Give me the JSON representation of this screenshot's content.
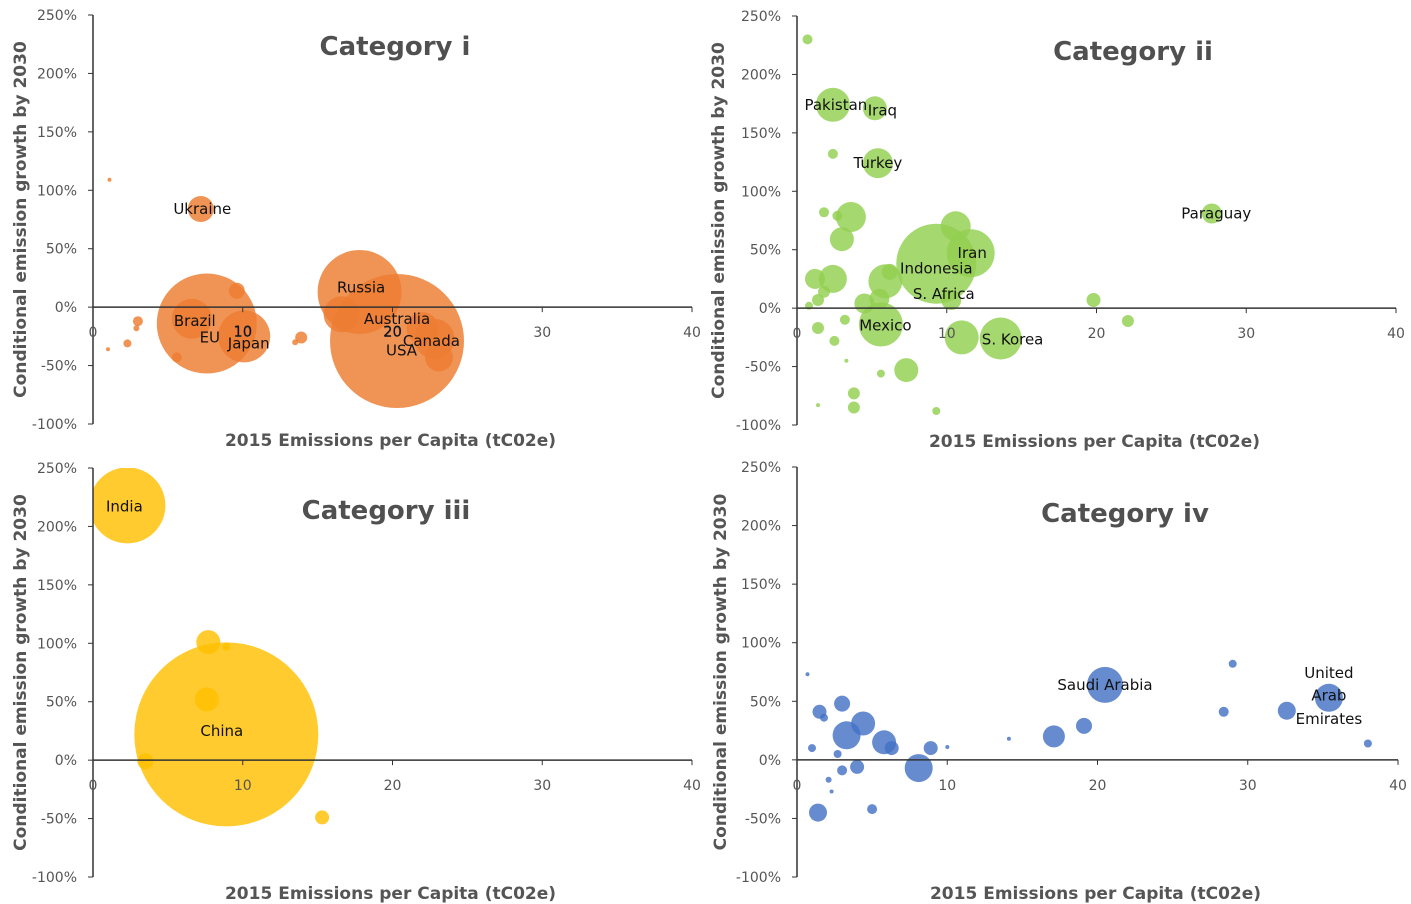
{
  "chart_data": [
    {
      "type": "scatter",
      "title": "Category i",
      "xlabel": "2015 Emissions per Capita (tC02e)",
      "ylabel": "Conditional emission growth by 2030",
      "xlim": [
        0,
        40
      ],
      "ylim": [
        -100,
        250
      ],
      "xticks": [
        "0",
        "10",
        "20",
        "30",
        "40"
      ],
      "yticks": [
        "-100%",
        "-50%",
        "0%",
        "50%",
        "100%",
        "150%",
        "200%",
        "250%"
      ],
      "color": "#ED7D31",
      "points": [
        {
          "x": 1.1,
          "y": 109,
          "size": 2
        },
        {
          "x": 7.2,
          "y": 84,
          "size": 13
        },
        {
          "x": 9.6,
          "y": 14,
          "size": 8
        },
        {
          "x": 3.0,
          "y": -12,
          "size": 5
        },
        {
          "x": 2.9,
          "y": -18,
          "size": 3
        },
        {
          "x": 2.3,
          "y": -31,
          "size": 4
        },
        {
          "x": 1.0,
          "y": -36,
          "size": 2
        },
        {
          "x": 5.6,
          "y": -43,
          "size": 5
        },
        {
          "x": 6.6,
          "y": -10,
          "size": 20
        },
        {
          "x": 7.6,
          "y": -14,
          "size": 50
        },
        {
          "x": 10.1,
          "y": -25,
          "size": 26
        },
        {
          "x": 13.9,
          "y": -26,
          "size": 6
        },
        {
          "x": 13.5,
          "y": -30,
          "size": 3
        },
        {
          "x": 16.6,
          "y": -6,
          "size": 18
        },
        {
          "x": 17.8,
          "y": 13,
          "size": 42
        },
        {
          "x": 20.3,
          "y": -29,
          "size": 67
        },
        {
          "x": 22.0,
          "y": -18,
          "size": 16
        },
        {
          "x": 22.8,
          "y": -27,
          "size": 20
        },
        {
          "x": 23.1,
          "y": -43,
          "size": 14
        }
      ],
      "labels": [
        {
          "text": "Ukraine",
          "x": 7.3,
          "y": 84
        },
        {
          "text": "Brazil",
          "x": 6.8,
          "y": -12
        },
        {
          "text": "EU",
          "x": 7.8,
          "y": -26
        },
        {
          "text": "10",
          "x": 10.0,
          "y": -21
        },
        {
          "text": "Japan",
          "x": 10.4,
          "y": -31
        },
        {
          "text": "Russia",
          "x": 17.9,
          "y": 17
        },
        {
          "text": "Australia",
          "x": 20.3,
          "y": -10
        },
        {
          "text": "20",
          "x": 20.0,
          "y": -21
        },
        {
          "text": "Canada",
          "x": 22.6,
          "y": -29
        },
        {
          "text": "USA",
          "x": 20.6,
          "y": -37
        }
      ]
    },
    {
      "type": "scatter",
      "title": "Category ii",
      "xlabel": "2015 Emissions per Capita (tC02e)",
      "ylabel": "Conditional emission growth by 2030",
      "xlim": [
        0,
        40
      ],
      "ylim": [
        -100,
        250
      ],
      "xticks": [
        "0",
        "10",
        "20",
        "30",
        "40"
      ],
      "yticks": [
        "-100%",
        "-50%",
        "0%",
        "50%",
        "100%",
        "150%",
        "200%",
        "250%"
      ],
      "color": "#92D050",
      "points": [
        {
          "x": 0.7,
          "y": 230,
          "size": 5
        },
        {
          "x": 2.4,
          "y": 174,
          "size": 17
        },
        {
          "x": 5.2,
          "y": 171,
          "size": 12
        },
        {
          "x": 2.4,
          "y": 132,
          "size": 5
        },
        {
          "x": 5.4,
          "y": 124,
          "size": 15
        },
        {
          "x": 27.7,
          "y": 81,
          "size": 10
        },
        {
          "x": 1.8,
          "y": 82,
          "size": 5
        },
        {
          "x": 2.7,
          "y": 79,
          "size": 5
        },
        {
          "x": 3.6,
          "y": 78,
          "size": 15
        },
        {
          "x": 3.0,
          "y": 59,
          "size": 12
        },
        {
          "x": 10.6,
          "y": 70,
          "size": 15
        },
        {
          "x": 11.6,
          "y": 47,
          "size": 24
        },
        {
          "x": 1.2,
          "y": 25,
          "size": 10
        },
        {
          "x": 2.4,
          "y": 25,
          "size": 14
        },
        {
          "x": 5.9,
          "y": 23,
          "size": 17
        },
        {
          "x": 9.3,
          "y": 38,
          "size": 40
        },
        {
          "x": 10.3,
          "y": 7,
          "size": 10
        },
        {
          "x": 6.2,
          "y": 31,
          "size": 8
        },
        {
          "x": 1.8,
          "y": 14,
          "size": 6
        },
        {
          "x": 1.4,
          "y": 7,
          "size": 6
        },
        {
          "x": 0.8,
          "y": 2,
          "size": 4
        },
        {
          "x": 4.5,
          "y": 4,
          "size": 10
        },
        {
          "x": 5.5,
          "y": 8,
          "size": 10
        },
        {
          "x": 1.4,
          "y": -17,
          "size": 6
        },
        {
          "x": 2.5,
          "y": -28,
          "size": 5
        },
        {
          "x": 3.2,
          "y": -10,
          "size": 5
        },
        {
          "x": 5.6,
          "y": -14,
          "size": 22
        },
        {
          "x": 11.0,
          "y": -25,
          "size": 17
        },
        {
          "x": 13.6,
          "y": -26,
          "size": 21
        },
        {
          "x": 7.3,
          "y": -53,
          "size": 12
        },
        {
          "x": 5.6,
          "y": -56,
          "size": 4
        },
        {
          "x": 3.3,
          "y": -45,
          "size": 2
        },
        {
          "x": 3.8,
          "y": -73,
          "size": 6
        },
        {
          "x": 3.8,
          "y": -85,
          "size": 6
        },
        {
          "x": 1.4,
          "y": -83,
          "size": 2
        },
        {
          "x": 9.3,
          "y": -88,
          "size": 4
        },
        {
          "x": 19.8,
          "y": 7,
          "size": 7
        },
        {
          "x": 22.1,
          "y": -11,
          "size": 6
        }
      ],
      "labels": [
        {
          "text": "Pakistan",
          "x": 2.6,
          "y": 174
        },
        {
          "text": "Iraq",
          "x": 5.7,
          "y": 169
        },
        {
          "text": "Turkey",
          "x": 5.4,
          "y": 124
        },
        {
          "text": "Paraguay",
          "x": 28.0,
          "y": 81
        },
        {
          "text": "Iran",
          "x": 11.7,
          "y": 47
        },
        {
          "text": "Indonesia",
          "x": 9.3,
          "y": 34
        },
        {
          "text": "S. Africa",
          "x": 9.8,
          "y": 12
        },
        {
          "text": "Mexico",
          "x": 5.9,
          "y": -15
        },
        {
          "text": "S. Korea",
          "x": 14.4,
          "y": -27
        }
      ]
    },
    {
      "type": "scatter",
      "title": "Category iii",
      "xlabel": "2015 Emissions per Capita (tC02e)",
      "ylabel": "Conditional emission growth by 2030",
      "xlim": [
        0,
        40
      ],
      "ylim": [
        -100,
        250
      ],
      "xticks": [
        "0",
        "10",
        "20",
        "30",
        "40"
      ],
      "yticks": [
        "-100%",
        "-50%",
        "0%",
        "50%",
        "100%",
        "150%",
        "200%",
        "250%"
      ],
      "color": "#FFC000",
      "points": [
        {
          "x": 2.3,
          "y": 218,
          "size": 38
        },
        {
          "x": 7.7,
          "y": 101,
          "size": 12
        },
        {
          "x": 8.9,
          "y": 97,
          "size": 4
        },
        {
          "x": 7.6,
          "y": 52,
          "size": 12
        },
        {
          "x": 8.9,
          "y": 22,
          "size": 92
        },
        {
          "x": 3.5,
          "y": -1,
          "size": 8
        },
        {
          "x": 15.3,
          "y": -49,
          "size": 7
        }
      ],
      "labels": [
        {
          "text": "India",
          "x": 2.1,
          "y": 217
        },
        {
          "text": "China",
          "x": 8.6,
          "y": 25
        }
      ]
    },
    {
      "type": "scatter",
      "title": "Category iv",
      "xlabel": "2015 Emissions per Capita (tC02e)",
      "ylabel": "Conditional emission growth by 2030",
      "xlim": [
        0,
        40
      ],
      "ylim": [
        -100,
        250
      ],
      "xticks": [
        "0",
        "10",
        "20",
        "30",
        "40"
      ],
      "yticks": [
        "-100%",
        "-50%",
        "0%",
        "50%",
        "100%",
        "150%",
        "200%",
        "250%"
      ],
      "color": "#4472C4",
      "points": [
        {
          "x": 0.7,
          "y": 73,
          "size": 2
        },
        {
          "x": 1.5,
          "y": 41,
          "size": 7
        },
        {
          "x": 1.8,
          "y": 36,
          "size": 4
        },
        {
          "x": 3.0,
          "y": 48,
          "size": 8
        },
        {
          "x": 3.3,
          "y": 21,
          "size": 14
        },
        {
          "x": 4.4,
          "y": 31,
          "size": 12
        },
        {
          "x": 5.8,
          "y": 15,
          "size": 12
        },
        {
          "x": 6.3,
          "y": 10,
          "size": 7
        },
        {
          "x": 8.9,
          "y": 10,
          "size": 7
        },
        {
          "x": 10.0,
          "y": 11,
          "size": 2
        },
        {
          "x": 1.0,
          "y": 10,
          "size": 4
        },
        {
          "x": 2.7,
          "y": 5,
          "size": 4
        },
        {
          "x": 4.0,
          "y": -6,
          "size": 7
        },
        {
          "x": 3.0,
          "y": -9,
          "size": 5
        },
        {
          "x": 2.1,
          "y": -17,
          "size": 3
        },
        {
          "x": 2.3,
          "y": -27,
          "size": 2
        },
        {
          "x": 8.1,
          "y": -7,
          "size": 14
        },
        {
          "x": 5.0,
          "y": -42,
          "size": 5
        },
        {
          "x": 1.4,
          "y": -45,
          "size": 9
        },
        {
          "x": 14.1,
          "y": 18,
          "size": 2
        },
        {
          "x": 17.1,
          "y": 20,
          "size": 11
        },
        {
          "x": 19.1,
          "y": 29,
          "size": 8
        },
        {
          "x": 20.5,
          "y": 64,
          "size": 18
        },
        {
          "x": 28.4,
          "y": 41,
          "size": 5
        },
        {
          "x": 29.0,
          "y": 82,
          "size": 4
        },
        {
          "x": 32.6,
          "y": 42,
          "size": 9
        },
        {
          "x": 35.4,
          "y": 53,
          "size": 14
        },
        {
          "x": 38.0,
          "y": 14,
          "size": 4
        }
      ],
      "labels": [
        {
          "text": "Saudi Arabia",
          "x": 20.5,
          "y": 64
        },
        {
          "text": "United",
          "x": 35.4,
          "y": 74
        },
        {
          "text": "Arab",
          "x": 35.4,
          "y": 55
        },
        {
          "text": "Emirates",
          "x": 35.4,
          "y": 35
        }
      ]
    }
  ]
}
